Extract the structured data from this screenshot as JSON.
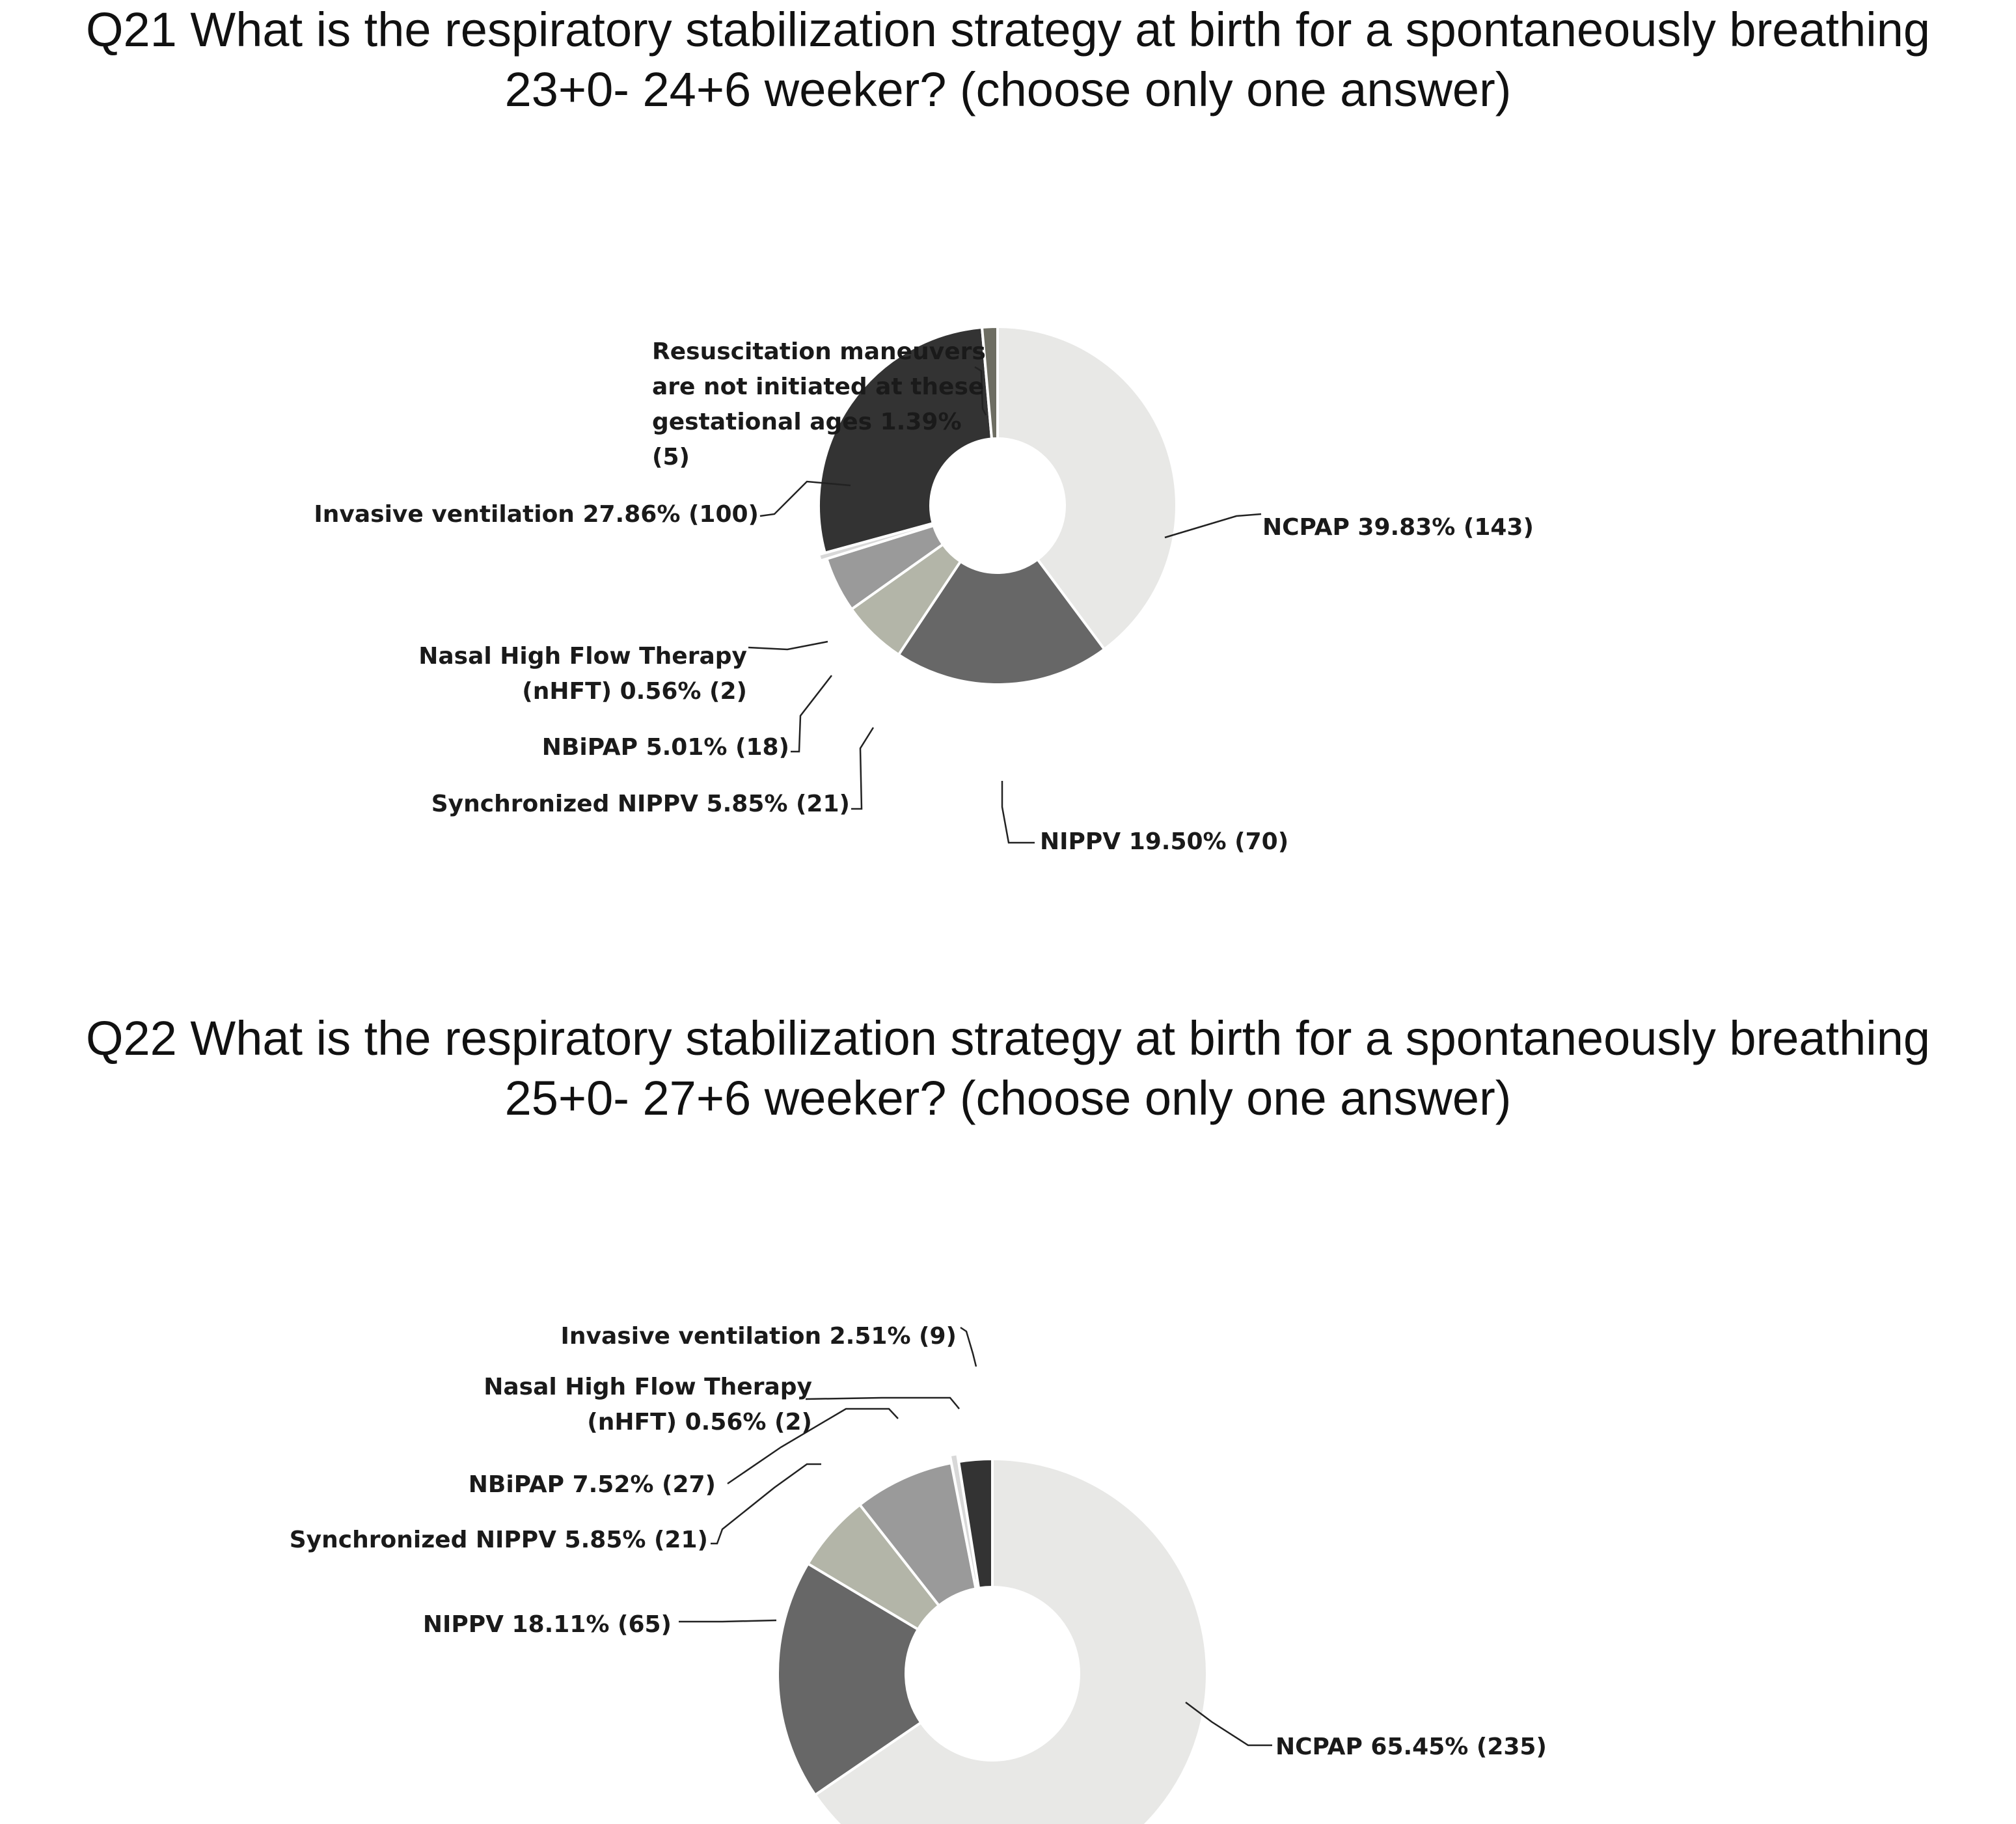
{
  "chart_data": [
    {
      "type": "pie",
      "title": "Q21 What is the respiratory stabilization strategy at birth for a spontaneously breathing 23+0- 24+6 weeker? (choose only one answer)",
      "title_lines": [
        "Q21 What is the respiratory stabilization strategy at birth for a spontaneously breathing",
        "23+0- 24+6 weeker? (choose only one answer)"
      ],
      "donut": true,
      "slices": [
        {
          "label": "NCPAP",
          "percent": 39.83,
          "count": 143,
          "color": "#e8e8e6",
          "text": [
            "NCPAP 39.83% (143)"
          ]
        },
        {
          "label": "NIPPV",
          "percent": 19.5,
          "count": 70,
          "color": "#676767",
          "text": [
            "NIPPV 19.50% (70)"
          ]
        },
        {
          "label": "Synchronized NIPPV",
          "percent": 5.85,
          "count": 21,
          "color": "#b3b5a8",
          "text": [
            "Synchronized NIPPV 5.85% (21)"
          ]
        },
        {
          "label": "NBiPAP",
          "percent": 5.01,
          "count": 18,
          "color": "#9a9a9a",
          "text": [
            "NBiPAP 5.01% (18)"
          ]
        },
        {
          "label": "Nasal High Flow Therapy (nHFT)",
          "percent": 0.56,
          "count": 2,
          "color": "#d8d8d8",
          "text": [
            "Nasal High Flow Therapy",
            "(nHFT) 0.56% (2)"
          ]
        },
        {
          "label": "Invasive ventilation",
          "percent": 27.86,
          "count": 100,
          "color": "#333333",
          "text": [
            "Invasive ventilation 27.86% (100)"
          ]
        },
        {
          "label": "Resuscitation maneuvers are not initiated at these gestational ages",
          "percent": 1.39,
          "count": 5,
          "color": "#6d6d62",
          "text": [
            "Resuscitation maneuvers",
            "are not initiated at these",
            "gestational ages 1.39%",
            "(5)"
          ]
        }
      ]
    },
    {
      "type": "pie",
      "title": "Q22 What is the respiratory stabilization strategy at birth for a spontaneously breathing 25+0- 27+6 weeker? (choose only one answer)",
      "title_lines": [
        "Q22 What is the respiratory stabilization strategy at birth for a spontaneously breathing",
        "25+0- 27+6 weeker? (choose only one answer)"
      ],
      "donut": true,
      "slices": [
        {
          "label": "NCPAP",
          "percent": 65.45,
          "count": 235,
          "color": "#e8e8e6",
          "text": [
            "NCPAP 65.45% (235)"
          ]
        },
        {
          "label": "NIPPV",
          "percent": 18.11,
          "count": 65,
          "color": "#676767",
          "text": [
            "NIPPV 18.11% (65)"
          ]
        },
        {
          "label": "Synchronized NIPPV",
          "percent": 5.85,
          "count": 21,
          "color": "#b3b5a8",
          "text": [
            "Synchronized NIPPV 5.85% (21)"
          ]
        },
        {
          "label": "NBiPAP",
          "percent": 7.52,
          "count": 27,
          "color": "#9a9a9a",
          "text": [
            "NBiPAP 7.52% (27)"
          ]
        },
        {
          "label": "Nasal High Flow Therapy (nHFT)",
          "percent": 0.56,
          "count": 2,
          "color": "#d8d8d8",
          "text": [
            "Nasal High Flow Therapy",
            "(nHFT) 0.56% (2)"
          ]
        },
        {
          "label": "Invasive ventilation",
          "percent": 2.51,
          "count": 9,
          "color": "#333333",
          "text": [
            "Invasive ventilation 2.51% (9)"
          ]
        }
      ]
    }
  ]
}
